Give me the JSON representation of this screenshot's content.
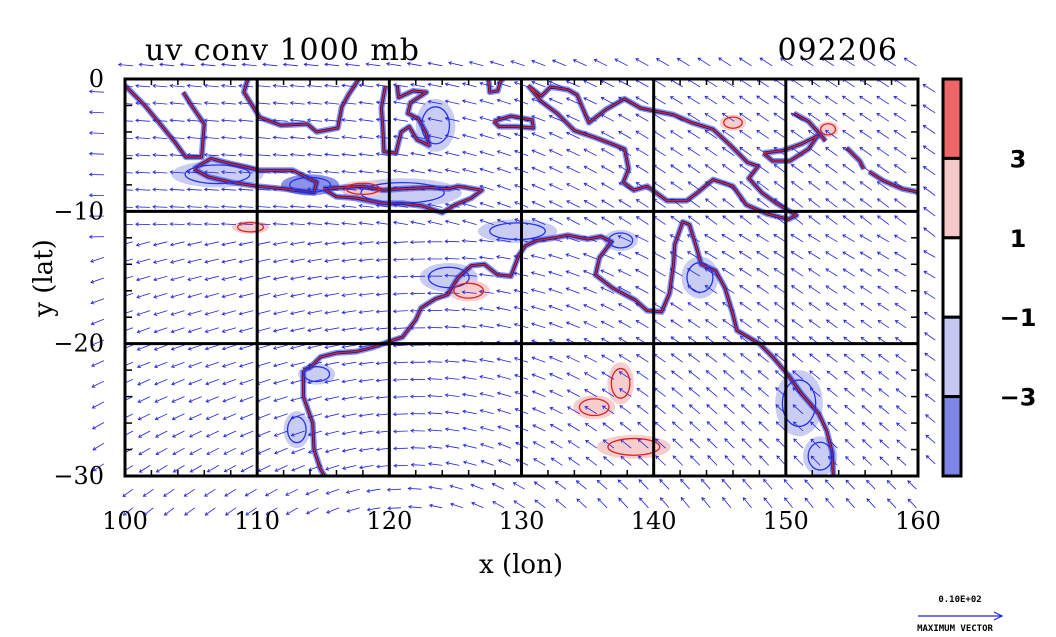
{
  "chart_data": {
    "type": "heatmap",
    "title": "uv conv 1000 mb",
    "date_label": "092206",
    "xlabel": "x (lon)",
    "ylabel": "y (lat)",
    "xlim": [
      100,
      160
    ],
    "ylim": [
      -30,
      0
    ],
    "x_ticks": [
      100,
      110,
      120,
      130,
      140,
      150,
      160
    ],
    "y_ticks": [
      {
        "value": 0,
        "label": "0"
      },
      {
        "value": -10,
        "label": "−10"
      },
      {
        "value": -20,
        "label": "−20"
      },
      {
        "value": -30,
        "label": "−30"
      }
    ],
    "grid": true,
    "colorbar": {
      "position": "right",
      "labels": [
        "3",
        "1",
        "−1",
        "−3"
      ],
      "levels": [
        3,
        1,
        -1,
        -3
      ],
      "bands": [
        {
          "range": "> 3",
          "color": "#ee6666"
        },
        {
          "range": "1 to 3",
          "color": "#f7c8c8"
        },
        {
          "range": "-1 to 1",
          "color": "#ffffff"
        },
        {
          "range": "-3 to -1",
          "color": "#c4c8f2"
        },
        {
          "range": "< -3",
          "color": "#7f86e6"
        }
      ]
    },
    "reference_vector": {
      "value": "0.10E+02",
      "label": "MAXIMUM VECTOR"
    },
    "vector_color": "#2222dd",
    "coast_color": "#000000",
    "contour_pos_color": "#dd2222",
    "contour_neg_color": "#2233ee",
    "coastlines": [
      {
        "name": "Australia",
        "lonlat": [
          [
            113.5,
            -22
          ],
          [
            114,
            -21.8
          ],
          [
            114.8,
            -21
          ],
          [
            116,
            -20.7
          ],
          [
            117.5,
            -20.6
          ],
          [
            118.7,
            -20.3
          ],
          [
            119.8,
            -19.9
          ],
          [
            121,
            -19.5
          ],
          [
            122,
            -18.2
          ],
          [
            122.4,
            -17.3
          ],
          [
            123.5,
            -16.6
          ],
          [
            124.4,
            -16.3
          ],
          [
            125.2,
            -15
          ],
          [
            126.2,
            -14.1
          ],
          [
            127.2,
            -14
          ],
          [
            128.2,
            -14.8
          ],
          [
            129.2,
            -14.9
          ],
          [
            129.8,
            -13.3
          ],
          [
            130.3,
            -12.6
          ],
          [
            131.2,
            -12.2
          ],
          [
            132.5,
            -12
          ],
          [
            133.5,
            -11.8
          ],
          [
            135,
            -12.1
          ],
          [
            136,
            -11.9
          ],
          [
            136.8,
            -12.3
          ],
          [
            135.9,
            -13.5
          ],
          [
            135.6,
            -14.8
          ],
          [
            136.9,
            -15.8
          ],
          [
            138.6,
            -16.7
          ],
          [
            139.5,
            -17.5
          ],
          [
            140.6,
            -17.6
          ],
          [
            141.2,
            -16.2
          ],
          [
            141.5,
            -14
          ],
          [
            141.6,
            -12.5
          ],
          [
            142.2,
            -10.8
          ],
          [
            142.7,
            -11
          ],
          [
            143.2,
            -12.6
          ],
          [
            143.6,
            -14
          ],
          [
            144.7,
            -14.5
          ],
          [
            145.4,
            -15.8
          ],
          [
            146,
            -17.8
          ],
          [
            146.3,
            -19
          ],
          [
            148,
            -20
          ],
          [
            149,
            -21
          ],
          [
            150.2,
            -22.4
          ],
          [
            151.2,
            -23.8
          ],
          [
            152.5,
            -25.3
          ],
          [
            153.1,
            -26.6
          ],
          [
            153.5,
            -28.2
          ],
          [
            153.6,
            -30
          ]
        ]
      },
      {
        "name": "West Australia",
        "lonlat": [
          [
            113.5,
            -22
          ],
          [
            113.5,
            -24
          ],
          [
            114.2,
            -26
          ],
          [
            114.3,
            -28
          ],
          [
            114.8,
            -29.5
          ],
          [
            115.1,
            -30
          ]
        ]
      },
      {
        "name": "Sumatra",
        "lonlat": [
          [
            100,
            -0.5
          ],
          [
            101.5,
            -2
          ],
          [
            102.5,
            -3.2
          ],
          [
            103.8,
            -4.8
          ],
          [
            104.6,
            -5.9
          ],
          [
            105.8,
            -5.9
          ],
          [
            105.9,
            -4.6
          ],
          [
            106,
            -3.4
          ],
          [
            105.1,
            -2.1
          ],
          [
            104.4,
            -1
          ]
        ]
      },
      {
        "name": "Java",
        "lonlat": [
          [
            105.2,
            -6.8
          ],
          [
            106.5,
            -6
          ],
          [
            108,
            -6.4
          ],
          [
            110.2,
            -6.9
          ],
          [
            112.7,
            -6.9
          ],
          [
            114.5,
            -7.8
          ],
          [
            114.3,
            -8.6
          ],
          [
            112,
            -8.3
          ],
          [
            110,
            -8.1
          ],
          [
            108,
            -7.8
          ],
          [
            106.3,
            -7.4
          ],
          [
            105.2,
            -6.8
          ]
        ]
      },
      {
        "name": "Lesser Sunda",
        "lonlat": [
          [
            115,
            -8.3
          ],
          [
            116.5,
            -8.2
          ],
          [
            118,
            -8.1
          ],
          [
            119.5,
            -8.4
          ],
          [
            121,
            -8.3
          ],
          [
            123,
            -8.2
          ],
          [
            124.5,
            -8.3
          ],
          [
            125.2,
            -8.1
          ],
          [
            127,
            -8.4
          ],
          [
            126.2,
            -9
          ],
          [
            125,
            -9.5
          ],
          [
            124,
            -10.1
          ],
          [
            122.5,
            -9.6
          ],
          [
            121,
            -9.4
          ],
          [
            119.5,
            -9.4
          ],
          [
            117.5,
            -9
          ],
          [
            116,
            -8.9
          ],
          [
            115,
            -8.3
          ]
        ]
      },
      {
        "name": "Borneo",
        "lonlat": [
          [
            109.3,
            0
          ],
          [
            109,
            -1
          ],
          [
            110.2,
            -2.9
          ],
          [
            111.8,
            -3.5
          ],
          [
            113.8,
            -3.4
          ],
          [
            114.5,
            -4
          ],
          [
            116.1,
            -3.7
          ],
          [
            116.4,
            -2.1
          ],
          [
            116.9,
            -1.2
          ],
          [
            117.7,
            0
          ]
        ]
      },
      {
        "name": "Sulawesi",
        "lonlat": [
          [
            119.7,
            -0.5
          ],
          [
            119.4,
            -2.2
          ],
          [
            119.5,
            -3.5
          ],
          [
            119.6,
            -5.5
          ],
          [
            120.5,
            -5.6
          ],
          [
            120.9,
            -4
          ],
          [
            121.5,
            -3.6
          ],
          [
            122.1,
            -4.6
          ],
          [
            123,
            -5
          ],
          [
            122.8,
            -4.1
          ],
          [
            122.2,
            -3
          ],
          [
            121.4,
            -2.6
          ],
          [
            121.6,
            -1.8
          ],
          [
            122.8,
            -1
          ],
          [
            121.8,
            -0.9
          ],
          [
            120.7,
            -1.4
          ],
          [
            120.6,
            -0.5
          ]
        ]
      },
      {
        "name": "Halmahera",
        "lonlat": [
          [
            127.5,
            0
          ],
          [
            127.6,
            -1
          ],
          [
            128.2,
            -0.9
          ],
          [
            128.4,
            -0.2
          ],
          [
            128.6,
            0
          ]
        ]
      },
      {
        "name": "Seram",
        "lonlat": [
          [
            127.9,
            -3.2
          ],
          [
            129.2,
            -2.8
          ],
          [
            130.8,
            -3.1
          ],
          [
            130.9,
            -3.7
          ],
          [
            129.6,
            -3.6
          ],
          [
            128.3,
            -3.6
          ],
          [
            127.9,
            -3.2
          ]
        ]
      },
      {
        "name": "New Guinea",
        "lonlat": [
          [
            130.5,
            -0.5
          ],
          [
            131.5,
            -1.3
          ],
          [
            132.2,
            -0.6
          ],
          [
            133.5,
            -0.8
          ],
          [
            134.2,
            -1.2
          ],
          [
            135.1,
            -3.3
          ],
          [
            136.4,
            -2.3
          ],
          [
            137.8,
            -1.5
          ],
          [
            139,
            -2.2
          ],
          [
            140.5,
            -2.5
          ],
          [
            141.5,
            -2.7
          ],
          [
            142.9,
            -3.3
          ],
          [
            144.5,
            -3.8
          ],
          [
            145.8,
            -5
          ],
          [
            147.1,
            -6.3
          ],
          [
            147.9,
            -6.6
          ],
          [
            147.2,
            -7.5
          ],
          [
            148.2,
            -8.6
          ],
          [
            149.3,
            -9.4
          ],
          [
            150.8,
            -10.3
          ],
          [
            150.2,
            -10.6
          ],
          [
            148.6,
            -10.2
          ],
          [
            147,
            -9.5
          ],
          [
            146,
            -8.1
          ],
          [
            144.5,
            -7.6
          ],
          [
            143.3,
            -8.6
          ],
          [
            142.5,
            -9.2
          ],
          [
            141,
            -9.2
          ],
          [
            139.5,
            -8.1
          ],
          [
            138.5,
            -8.4
          ],
          [
            137.7,
            -7.8
          ],
          [
            138.1,
            -6.8
          ],
          [
            137.8,
            -5.3
          ],
          [
            136.8,
            -4.9
          ],
          [
            135.5,
            -4.4
          ],
          [
            134,
            -3.9
          ],
          [
            133.5,
            -3.4
          ],
          [
            132.7,
            -2.6
          ],
          [
            131.5,
            -1.7
          ],
          [
            130.5,
            -0.5
          ]
        ]
      },
      {
        "name": "New Britain",
        "lonlat": [
          [
            148.3,
            -5.6
          ],
          [
            149.8,
            -5.4
          ],
          [
            151.2,
            -4.9
          ],
          [
            152.4,
            -4.3
          ],
          [
            151.7,
            -5.3
          ],
          [
            150.3,
            -6.2
          ],
          [
            149,
            -6.2
          ],
          [
            148.3,
            -5.6
          ]
        ]
      },
      {
        "name": "New Ireland",
        "lonlat": [
          [
            150.6,
            -2.6
          ],
          [
            151.7,
            -3.2
          ],
          [
            152.7,
            -4.3
          ],
          [
            153,
            -4.7
          ]
        ]
      },
      {
        "name": "Bougainville",
        "lonlat": [
          [
            154.6,
            -5.2
          ],
          [
            155.6,
            -6.2
          ],
          [
            155.9,
            -6.8
          ]
        ]
      },
      {
        "name": "Solomon Islands",
        "lonlat": [
          [
            156.3,
            -7
          ],
          [
            157.4,
            -7.7
          ],
          [
            158.8,
            -8.3
          ],
          [
            159.8,
            -8.5
          ],
          [
            160,
            -8.6
          ]
        ]
      }
    ],
    "convergence_patches": [
      {
        "sign": "neg",
        "level": 1,
        "lon": 107,
        "lat": -7.2,
        "rx": 3.5,
        "ry": 1.0
      },
      {
        "sign": "neg",
        "level": 2,
        "lon": 114,
        "lat": -8.0,
        "rx": 2.2,
        "ry": 0.8
      },
      {
        "sign": "neg",
        "level": 1,
        "lon": 121,
        "lat": -8.6,
        "rx": 4.5,
        "ry": 1.1
      },
      {
        "sign": "pos",
        "level": 1,
        "lon": 118,
        "lat": -8.3,
        "rx": 1.8,
        "ry": 0.6
      },
      {
        "sign": "neg",
        "level": 1,
        "lon": 129.7,
        "lat": -11.5,
        "rx": 3.0,
        "ry": 0.9
      },
      {
        "sign": "neg",
        "level": 1,
        "lon": 137.5,
        "lat": -12.2,
        "rx": 1.3,
        "ry": 0.8
      },
      {
        "sign": "neg",
        "level": 1,
        "lon": 124.5,
        "lat": -15.0,
        "rx": 2.2,
        "ry": 1.1
      },
      {
        "sign": "pos",
        "level": 1,
        "lon": 126.0,
        "lat": -16.0,
        "rx": 1.6,
        "ry": 0.8
      },
      {
        "sign": "neg",
        "level": 1,
        "lon": 143.5,
        "lat": -15.0,
        "rx": 1.4,
        "ry": 1.6
      },
      {
        "sign": "neg",
        "level": 1,
        "lon": 151,
        "lat": -24.5,
        "rx": 1.8,
        "ry": 2.5
      },
      {
        "sign": "neg",
        "level": 1,
        "lon": 152.6,
        "lat": -28.5,
        "rx": 1.3,
        "ry": 1.5
      },
      {
        "sign": "pos",
        "level": 1,
        "lon": 137.5,
        "lat": -23.0,
        "rx": 1.0,
        "ry": 1.6
      },
      {
        "sign": "pos",
        "level": 1,
        "lon": 135.5,
        "lat": -24.8,
        "rx": 1.6,
        "ry": 0.9
      },
      {
        "sign": "pos",
        "level": 1,
        "lon": 138.5,
        "lat": -27.8,
        "rx": 2.8,
        "ry": 0.9
      },
      {
        "sign": "neg",
        "level": 1,
        "lon": 123.5,
        "lat": -3.5,
        "rx": 1.5,
        "ry": 2.0
      },
      {
        "sign": "neg",
        "level": 1,
        "lon": 114.5,
        "lat": -22.3,
        "rx": 1.4,
        "ry": 0.8
      },
      {
        "sign": "neg",
        "level": 1,
        "lon": 113.0,
        "lat": -26.5,
        "rx": 1.0,
        "ry": 1.4
      },
      {
        "sign": "pos",
        "level": 1,
        "lon": 109.5,
        "lat": -11.2,
        "rx": 1.4,
        "ry": 0.5
      },
      {
        "sign": "pos",
        "level": 1,
        "lon": 146.0,
        "lat": -3.3,
        "rx": 1.0,
        "ry": 0.6
      },
      {
        "sign": "pos",
        "level": 1,
        "lon": 153.2,
        "lat": -3.8,
        "rx": 0.8,
        "ry": 0.6
      }
    ]
  }
}
